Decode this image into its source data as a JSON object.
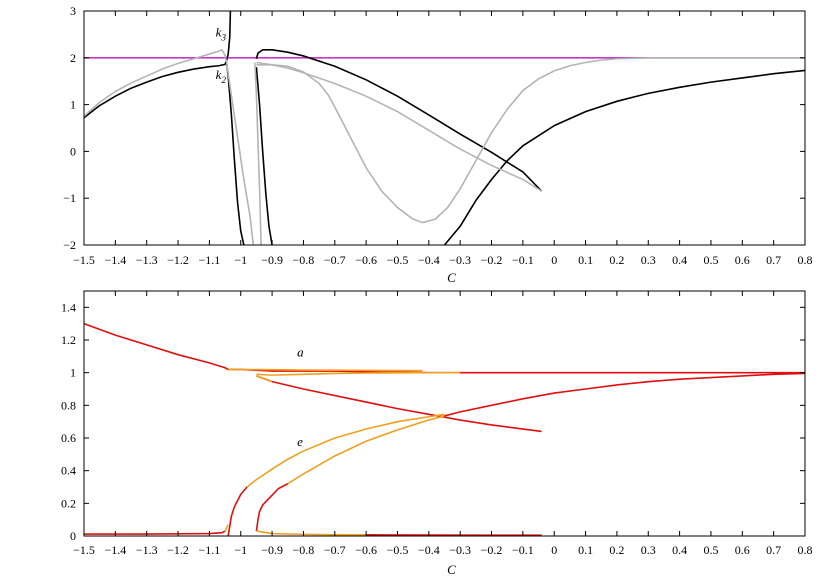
{
  "chart_data": [
    {
      "type": "line",
      "xlabel": "C",
      "xlim": [
        -1.5,
        0.8
      ],
      "ylim": [
        -2,
        3
      ],
      "xticks": [
        "-1.5",
        "-1.4",
        "-1.3",
        "-1.2",
        "-1.1",
        "-1",
        "-0.9",
        "-0.8",
        "-0.7",
        "-0.6",
        "-0.5",
        "-0.4",
        "-0.3",
        "-0.2",
        "-0.1",
        "0",
        "0.1",
        "0.2",
        "0.3",
        "0.4",
        "0.5",
        "0.6",
        "0.7",
        "0.8"
      ],
      "yticks": [
        "-2",
        "-1",
        "0",
        "1",
        "2",
        "3"
      ],
      "annotations": [
        {
          "text": "k",
          "sub": "3",
          "x": -1.08,
          "y": 2.45
        },
        {
          "text": "k",
          "sub": "2",
          "x": -1.08,
          "y": 1.55
        }
      ],
      "series": [
        {
          "color": "#cc33cc",
          "points": [
            [
              -1.5,
              2
            ],
            [
              0.8,
              2
            ]
          ]
        },
        {
          "color": "#000000",
          "points": [
            [
              -1.5,
              0.72
            ],
            [
              -1.45,
              0.98
            ],
            [
              -1.4,
              1.18
            ],
            [
              -1.35,
              1.35
            ],
            [
              -1.3,
              1.48
            ],
            [
              -1.25,
              1.6
            ],
            [
              -1.2,
              1.69
            ],
            [
              -1.15,
              1.76
            ],
            [
              -1.1,
              1.81
            ],
            [
              -1.07,
              1.83
            ],
            [
              -1.05,
              1.86
            ],
            [
              -1.045,
              1.95
            ],
            [
              -1.04,
              2.08
            ],
            [
              -1.035,
              2.45
            ],
            [
              -1.033,
              3.0
            ]
          ]
        },
        {
          "color": "#000000",
          "points": [
            [
              -1.045,
              1.9
            ],
            [
              -1.04,
              1.6
            ],
            [
              -1.03,
              0.8
            ],
            [
              -1.02,
              -0.2
            ],
            [
              -1.01,
              -1.1
            ],
            [
              -1.0,
              -1.7
            ],
            [
              -0.99,
              -2.0
            ]
          ]
        },
        {
          "color": "#000000",
          "points": [
            [
              -0.95,
              1.8
            ],
            [
              -0.94,
              1.0
            ],
            [
              -0.93,
              0.0
            ],
            [
              -0.92,
              -0.9
            ],
            [
              -0.91,
              -1.6
            ],
            [
              -0.9,
              -2.0
            ]
          ]
        },
        {
          "color": "#000000",
          "points": [
            [
              -0.95,
              1.98
            ],
            [
              -0.945,
              2.1
            ],
            [
              -0.93,
              2.17
            ],
            [
              -0.9,
              2.17
            ],
            [
              -0.85,
              2.12
            ],
            [
              -0.8,
              2.04
            ],
            [
              -0.7,
              1.82
            ],
            [
              -0.6,
              1.53
            ],
            [
              -0.5,
              1.18
            ],
            [
              -0.4,
              0.78
            ],
            [
              -0.3,
              0.37
            ],
            [
              -0.2,
              -0.02
            ],
            [
              -0.1,
              -0.44
            ],
            [
              -0.04,
              -0.85
            ]
          ]
        },
        {
          "color": "#000000",
          "points": [
            [
              -0.35,
              -2.0
            ],
            [
              -0.3,
              -1.6
            ],
            [
              -0.25,
              -1.05
            ],
            [
              -0.2,
              -0.6
            ],
            [
              -0.15,
              -0.2
            ],
            [
              -0.1,
              0.12
            ],
            [
              0.0,
              0.55
            ],
            [
              0.1,
              0.85
            ],
            [
              0.2,
              1.07
            ],
            [
              0.3,
              1.24
            ],
            [
              0.4,
              1.37
            ],
            [
              0.5,
              1.48
            ],
            [
              0.6,
              1.57
            ],
            [
              0.7,
              1.66
            ],
            [
              0.8,
              1.73
            ]
          ]
        },
        {
          "color": "#b4b4b4",
          "points": [
            [
              -1.5,
              0.75
            ],
            [
              -1.45,
              1.05
            ],
            [
              -1.4,
              1.28
            ],
            [
              -1.35,
              1.46
            ],
            [
              -1.3,
              1.61
            ],
            [
              -1.25,
              1.76
            ],
            [
              -1.2,
              1.88
            ],
            [
              -1.15,
              1.98
            ],
            [
              -1.1,
              2.08
            ],
            [
              -1.07,
              2.14
            ],
            [
              -1.06,
              2.17
            ],
            [
              -1.05,
              2.05
            ],
            [
              -1.045,
              1.9
            ]
          ]
        },
        {
          "color": "#b4b4b4",
          "points": [
            [
              -1.045,
              1.9
            ],
            [
              -1.03,
              1.2
            ],
            [
              -1.01,
              0.3
            ],
            [
              -0.99,
              -0.6
            ],
            [
              -0.97,
              -1.4
            ],
            [
              -0.96,
              -2.0
            ]
          ]
        },
        {
          "color": "#b4b4b4",
          "points": [
            [
              -0.95,
              1.85
            ],
            [
              -0.9,
              1.85
            ],
            [
              -0.85,
              1.82
            ],
            [
              -0.8,
              1.7
            ],
            [
              -0.75,
              1.45
            ],
            [
              -0.72,
              1.2
            ],
            [
              -0.7,
              0.95
            ],
            [
              -0.65,
              0.3
            ],
            [
              -0.6,
              -0.35
            ],
            [
              -0.55,
              -0.85
            ],
            [
              -0.5,
              -1.2
            ],
            [
              -0.45,
              -1.45
            ],
            [
              -0.42,
              -1.52
            ],
            [
              -0.38,
              -1.45
            ],
            [
              -0.34,
              -1.2
            ],
            [
              -0.3,
              -0.8
            ],
            [
              -0.25,
              -0.2
            ],
            [
              -0.2,
              0.4
            ],
            [
              -0.15,
              0.9
            ],
            [
              -0.1,
              1.3
            ],
            [
              -0.05,
              1.55
            ],
            [
              0.0,
              1.72
            ],
            [
              0.05,
              1.83
            ],
            [
              0.1,
              1.9
            ],
            [
              0.15,
              1.95
            ],
            [
              0.2,
              1.98
            ],
            [
              0.3,
              2.0
            ],
            [
              0.8,
              2.0
            ]
          ]
        },
        {
          "color": "#b4b4b4",
          "points": [
            [
              -0.95,
              1.9
            ],
            [
              -0.9,
              1.85
            ],
            [
              -0.85,
              1.78
            ],
            [
              -0.8,
              1.68
            ],
            [
              -0.7,
              1.45
            ],
            [
              -0.6,
              1.18
            ],
            [
              -0.5,
              0.85
            ],
            [
              -0.4,
              0.45
            ],
            [
              -0.3,
              0.05
            ],
            [
              -0.2,
              -0.3
            ],
            [
              -0.1,
              -0.6
            ],
            [
              -0.04,
              -0.85
            ]
          ]
        },
        {
          "color": "#b4b4b4",
          "points": [
            [
              -0.955,
              1.9
            ],
            [
              -0.95,
              1.2
            ],
            [
              -0.945,
              0.2
            ],
            [
              -0.94,
              -0.8
            ],
            [
              -0.935,
              -2.0
            ]
          ]
        }
      ]
    },
    {
      "type": "line",
      "xlabel": "C",
      "xlim": [
        -1.5,
        0.8
      ],
      "ylim": [
        0,
        1.5
      ],
      "xticks": [
        "-1.5",
        "-1.4",
        "-1.3",
        "-1.2",
        "-1.1",
        "-1",
        "-0.9",
        "-0.8",
        "-0.7",
        "-0.6",
        "-0.5",
        "-0.4",
        "-0.3",
        "-0.2",
        "-0.1",
        "0",
        "0.1",
        "0.2",
        "0.3",
        "0.4",
        "0.5",
        "0.6",
        "0.7",
        "0.8"
      ],
      "yticks": [
        "0",
        "0.2",
        "0.4",
        "0.6",
        "0.8",
        "1",
        "1.2",
        "1.4"
      ],
      "annotations": [
        {
          "text": "a",
          "x": -0.82,
          "y": 1.1
        },
        {
          "text": "e",
          "x": -0.82,
          "y": 0.55
        }
      ],
      "series": [
        {
          "color": "#e01010",
          "points": [
            [
              -1.5,
              1.3
            ],
            [
              -1.4,
              1.23
            ],
            [
              -1.3,
              1.17
            ],
            [
              -1.2,
              1.11
            ],
            [
              -1.1,
              1.06
            ],
            [
              -1.05,
              1.03
            ],
            [
              -1.04,
              1.02
            ],
            [
              -1.0,
              1.02
            ],
            [
              -0.9,
              1.01
            ],
            [
              -0.8,
              1.01
            ],
            [
              -0.7,
              1.01
            ],
            [
              -0.6,
              1.005
            ],
            [
              -0.5,
              1.003
            ],
            [
              -0.4,
              1.0
            ],
            [
              -0.3,
              1.0
            ],
            [
              0.0,
              1.0
            ],
            [
              0.4,
              1.0
            ],
            [
              0.8,
              1.0
            ]
          ]
        },
        {
          "color": "#f0a020",
          "points": [
            [
              -1.04,
              1.02
            ],
            [
              -0.9,
              1.018
            ],
            [
              -0.8,
              1.016
            ],
            [
              -0.7,
              1.015
            ],
            [
              -0.6,
              1.014
            ],
            [
              -0.5,
              1.013
            ],
            [
              -0.42,
              1.012
            ]
          ]
        },
        {
          "color": "#f0a020",
          "points": [
            [
              -0.95,
              0.99
            ],
            [
              -0.9,
              0.985
            ],
            [
              -0.8,
              0.99
            ],
            [
              -0.7,
              0.995
            ],
            [
              -0.6,
              0.998
            ],
            [
              -0.5,
              0.999
            ],
            [
              -0.4,
              1.0
            ],
            [
              -0.3,
              1.0
            ]
          ]
        },
        {
          "color": "#e01010",
          "points": [
            [
              -0.95,
              0.98
            ],
            [
              -0.9,
              0.945
            ],
            [
              -0.8,
              0.9
            ],
            [
              -0.7,
              0.86
            ],
            [
              -0.6,
              0.82
            ],
            [
              -0.5,
              0.78
            ],
            [
              -0.4,
              0.745
            ],
            [
              -0.3,
              0.71
            ],
            [
              -0.2,
              0.68
            ],
            [
              -0.1,
              0.655
            ],
            [
              -0.04,
              0.64
            ]
          ]
        },
        {
          "color": "#f0a020",
          "points": [
            [
              -0.95,
              0.98
            ],
            [
              -0.92,
              0.96
            ],
            [
              -0.9,
              0.945
            ]
          ]
        },
        {
          "color": "#e01010",
          "points": [
            [
              -1.5,
              0.012
            ],
            [
              -1.3,
              0.012
            ],
            [
              -1.1,
              0.015
            ],
            [
              -1.06,
              0.02
            ],
            [
              -1.05,
              0.03
            ]
          ]
        },
        {
          "color": "#e01010",
          "points": [
            [
              -1.04,
              0.0
            ],
            [
              -1.035,
              0.06
            ],
            [
              -1.03,
              0.12
            ],
            [
              -1.02,
              0.18
            ],
            [
              -1.0,
              0.255
            ],
            [
              -0.98,
              0.3
            ]
          ]
        },
        {
          "color": "#f0a020",
          "points": [
            [
              -0.98,
              0.3
            ],
            [
              -0.95,
              0.345
            ],
            [
              -0.9,
              0.41
            ],
            [
              -0.85,
              0.47
            ],
            [
              -0.8,
              0.52
            ],
            [
              -0.7,
              0.6
            ],
            [
              -0.6,
              0.655
            ],
            [
              -0.5,
              0.7
            ],
            [
              -0.4,
              0.73
            ],
            [
              -0.35,
              0.745
            ]
          ]
        },
        {
          "color": "#e01010",
          "points": [
            [
              -0.95,
              0.03
            ],
            [
              -0.945,
              0.1
            ],
            [
              -0.94,
              0.15
            ],
            [
              -0.93,
              0.19
            ],
            [
              -0.9,
              0.25
            ],
            [
              -0.88,
              0.29
            ],
            [
              -0.85,
              0.32
            ]
          ]
        },
        {
          "color": "#f0a020",
          "points": [
            [
              -0.85,
              0.32
            ],
            [
              -0.8,
              0.38
            ],
            [
              -0.7,
              0.49
            ],
            [
              -0.6,
              0.58
            ],
            [
              -0.5,
              0.65
            ],
            [
              -0.4,
              0.71
            ],
            [
              -0.35,
              0.735
            ]
          ]
        },
        {
          "color": "#e01010",
          "points": [
            [
              -0.35,
              0.735
            ],
            [
              -0.3,
              0.76
            ],
            [
              -0.2,
              0.8
            ],
            [
              -0.1,
              0.84
            ],
            [
              0.0,
              0.875
            ],
            [
              0.1,
              0.9
            ],
            [
              0.2,
              0.925
            ],
            [
              0.3,
              0.945
            ],
            [
              0.4,
              0.96
            ],
            [
              0.5,
              0.97
            ],
            [
              0.6,
              0.98
            ],
            [
              0.7,
              0.99
            ],
            [
              0.8,
              0.995
            ]
          ]
        },
        {
          "color": "#f0a020",
          "points": [
            [
              -0.95,
              0.03
            ],
            [
              -0.9,
              0.015
            ],
            [
              -0.8,
              0.01
            ],
            [
              -0.7,
              0.008
            ],
            [
              -0.6,
              0.007
            ]
          ]
        },
        {
          "color": "#e01010",
          "points": [
            [
              -0.6,
              0.007
            ],
            [
              -0.4,
              0.006
            ],
            [
              -0.2,
              0.005
            ],
            [
              -0.04,
              0.005
            ]
          ]
        },
        {
          "color": "#f0a020",
          "points": [
            [
              -1.05,
              0.03
            ],
            [
              -1.045,
              0.05
            ],
            [
              -1.04,
              0.07
            ]
          ]
        }
      ]
    }
  ]
}
